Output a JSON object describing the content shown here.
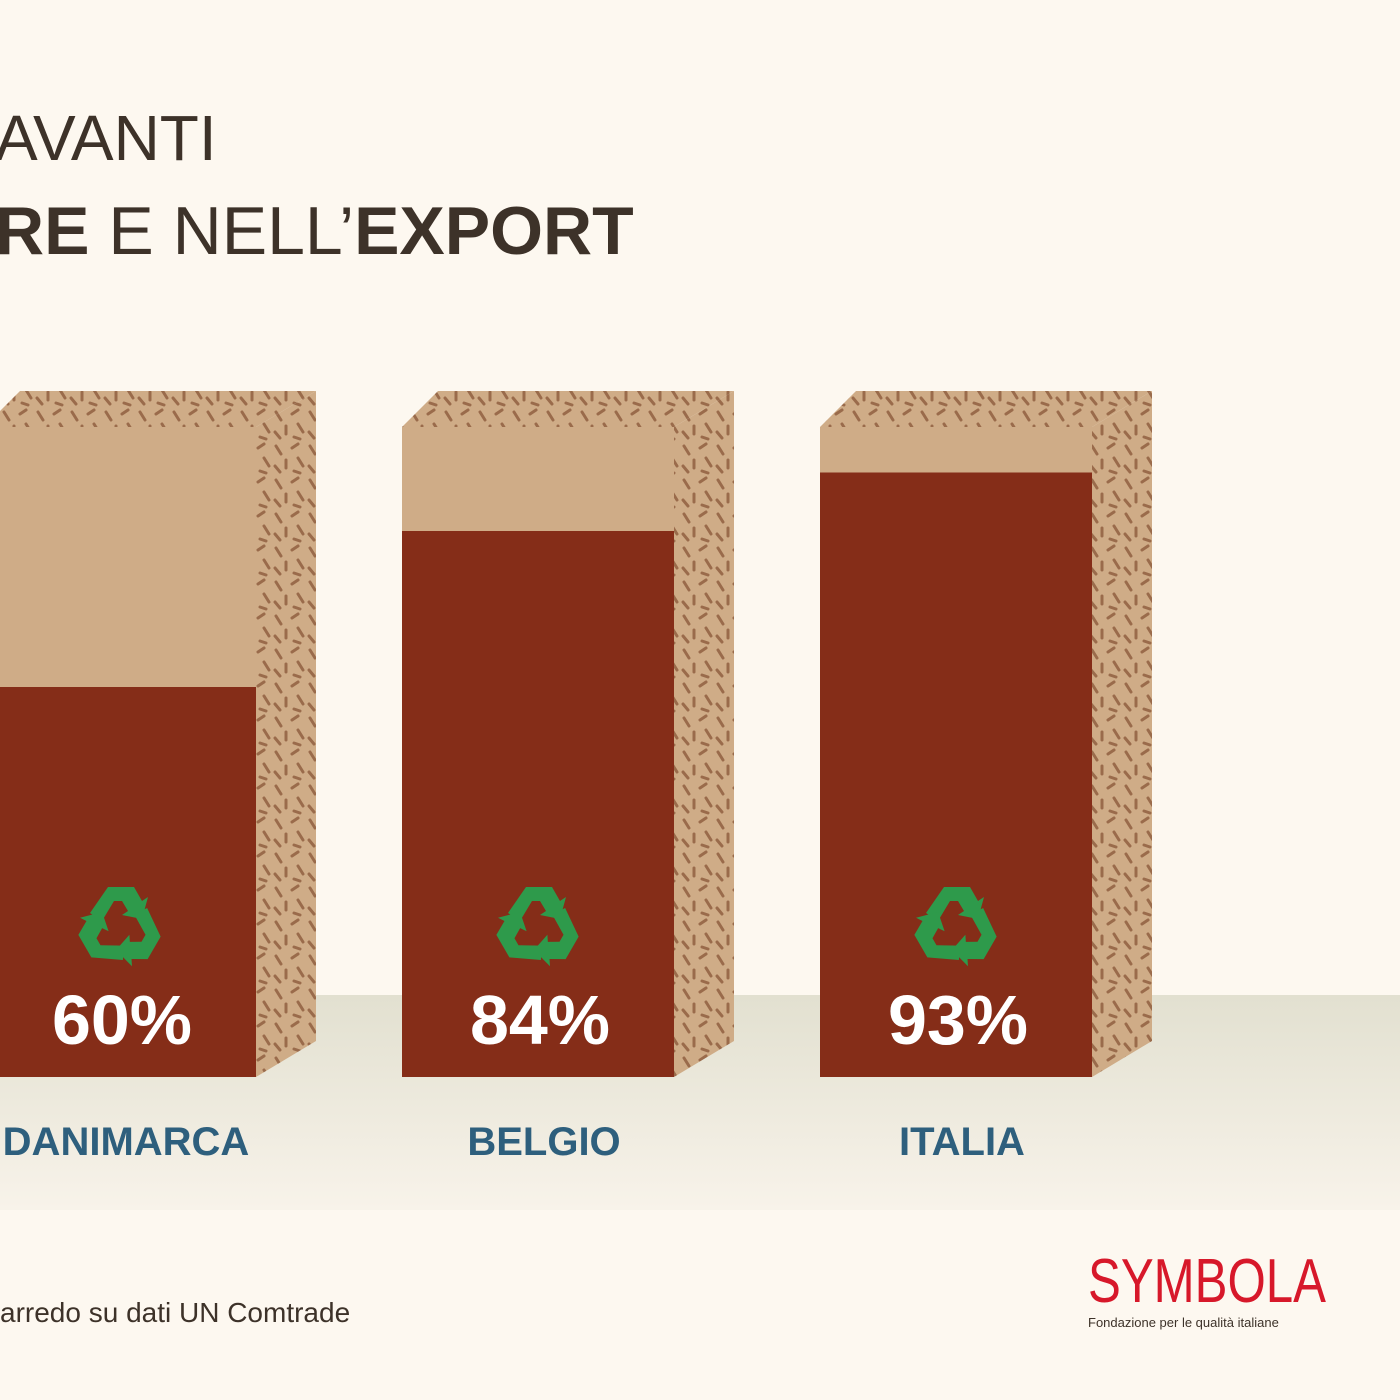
{
  "header": {
    "title_line1": "AVANTI",
    "title_line2": {
      "part1": "RE",
      "part2": " E NELL’",
      "part3": "EXPORT"
    }
  },
  "chart_data": {
    "type": "bar",
    "categories": [
      "DANIMARCA",
      "BELGIO",
      "ITALIA"
    ],
    "values": [
      60,
      84,
      93
    ],
    "value_labels": [
      "60%",
      "84%",
      "93%"
    ],
    "ylim": [
      0,
      100
    ],
    "color": "#852d18"
  },
  "footer": {
    "source": "arredo su dati UN Comtrade",
    "logo": "SYMBOLA",
    "logo_subtitle": "Fondazione per le qualità italiane"
  }
}
